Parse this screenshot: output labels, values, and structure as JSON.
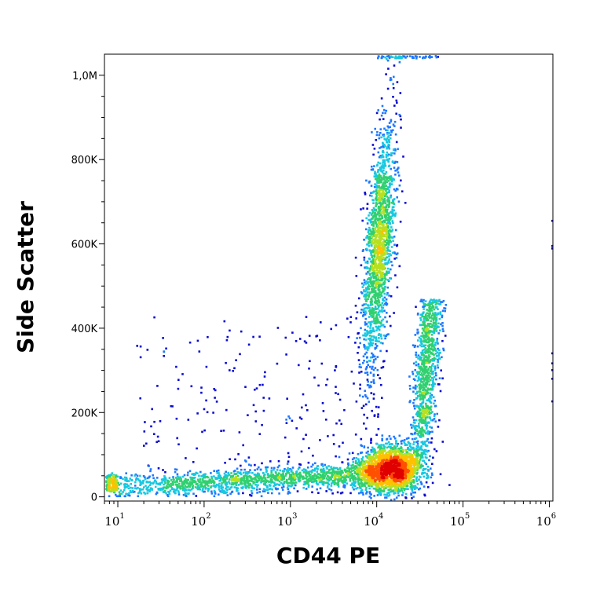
{
  "chart_data": {
    "type": "scatter",
    "style": "flow-cytometry density dot plot",
    "xlabel": "CD44 PE",
    "ylabel": "Side Scatter",
    "x_scale": "log",
    "xlim": [
      7,
      1100000
    ],
    "ylim": [
      -10000,
      1050000
    ],
    "x_ticks": [
      {
        "value": 10,
        "base": "10",
        "exp": "1"
      },
      {
        "value": 100,
        "base": "10",
        "exp": "2"
      },
      {
        "value": 1000,
        "base": "10",
        "exp": "3"
      },
      {
        "value": 10000,
        "base": "10",
        "exp": "4"
      },
      {
        "value": 100000,
        "base": "10",
        "exp": "5"
      },
      {
        "value": 1000000,
        "base": "10",
        "exp": "6"
      }
    ],
    "y_ticks": [
      {
        "value": 0,
        "label": "0"
      },
      {
        "value": 200000,
        "label": "200K"
      },
      {
        "value": 400000,
        "label": "400K"
      },
      {
        "value": 600000,
        "label": "600K"
      },
      {
        "value": 800000,
        "label": "800K"
      },
      {
        "value": 1000000,
        "label": "1,0M"
      }
    ],
    "density_colors": [
      "#0a0ad0",
      "#1e78ff",
      "#18c8e0",
      "#30d070",
      "#b8e020",
      "#ffc000",
      "#ff5000",
      "#e00000"
    ],
    "populations": [
      {
        "name_shown": false,
        "log10_x_center": 4.02,
        "y_center": 600000,
        "count_estimate": 1600
      },
      {
        "name_shown": false,
        "log10_x_center": 4.15,
        "y_center": 70000,
        "count_estimate": 1800
      },
      {
        "name_shown": false,
        "log10_x_center": 4.55,
        "y_center": 300000,
        "count_estimate": 900
      },
      {
        "name_shown": false,
        "log10_x_center": 2.5,
        "y_center": 40000,
        "count_estimate": 1300
      }
    ],
    "grid": false,
    "legend": "none"
  }
}
